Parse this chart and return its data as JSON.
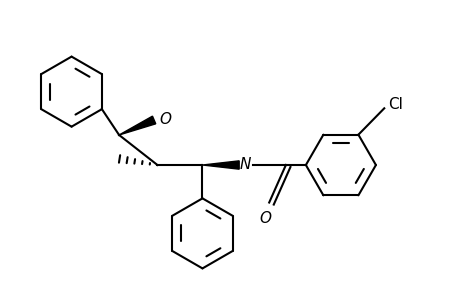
{
  "background": "#ffffff",
  "line_color": "#000000",
  "line_width": 1.5,
  "figsize": [
    4.6,
    3.0
  ],
  "dpi": 100,
  "xlim": [
    0.3,
    5.8
  ],
  "ylim": [
    -0.2,
    3.1
  ]
}
